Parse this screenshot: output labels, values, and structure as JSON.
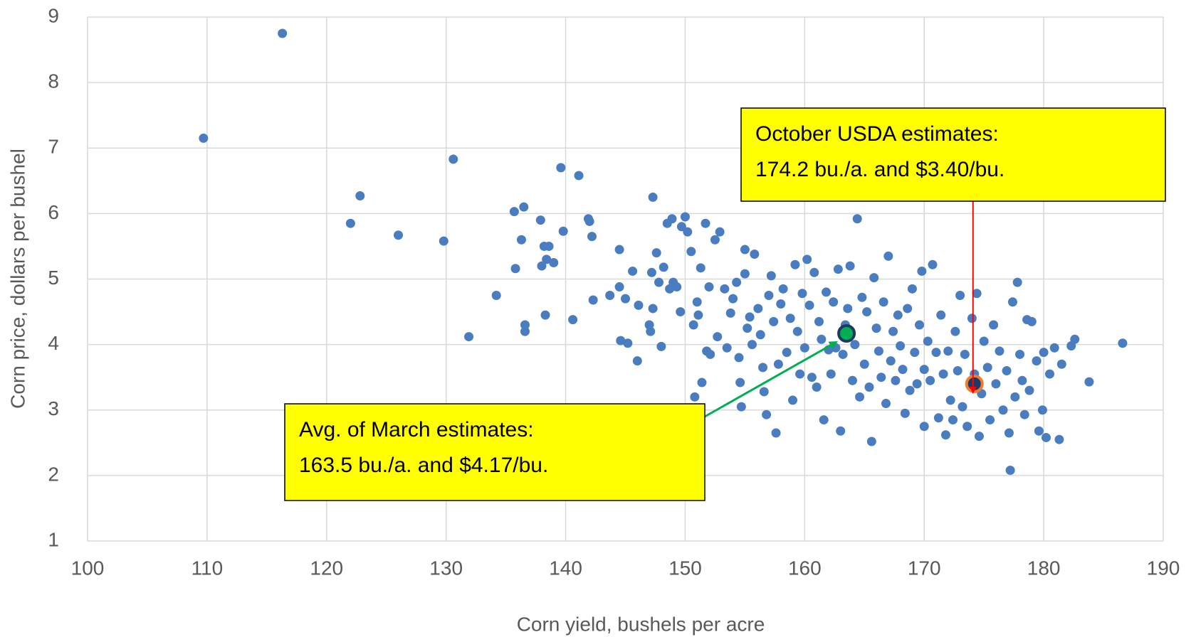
{
  "chart_data": {
    "type": "scatter",
    "xlabel": "Corn yield, bushels per acre",
    "ylabel": "Corn price, dollars per bushel",
    "xlim": [
      100,
      190
    ],
    "xticks": [
      100,
      110,
      120,
      130,
      140,
      150,
      160,
      170,
      180,
      190
    ],
    "ylim": [
      1,
      9
    ],
    "yticks": [
      1,
      2,
      3,
      4,
      5,
      6,
      7,
      8,
      9
    ],
    "grid": true,
    "series": [
      {
        "color": "#4a7dbf",
        "x": [
          109.7,
          116.3,
          122,
          122.8,
          126,
          129.8,
          130.6,
          131.9,
          134.2,
          135.7,
          135.8,
          136.3,
          136.5,
          136.6,
          136.6,
          137.9,
          138,
          138.2,
          138.3,
          138.4,
          138.6,
          139,
          139.6,
          139.8,
          140.6,
          141.1,
          141.9,
          142,
          142.2,
          142.3,
          143.7,
          144.5,
          144.5,
          144.6,
          145,
          145.2,
          145.6,
          146,
          146.1,
          147,
          147.1,
          147.2,
          147.3,
          147.3,
          147.6,
          147.8,
          148,
          148.2,
          148.5,
          148.7,
          148.9,
          149,
          149.3,
          149.6,
          149.7,
          150,
          150.2,
          150.5,
          150.7,
          150.8,
          151,
          151.1,
          151.3,
          151.4,
          151.7,
          151.8,
          152,
          152.1,
          152.5,
          152.7,
          152.9,
          153.3,
          153.5,
          153.8,
          154,
          154.3,
          154.5,
          154.6,
          154.7,
          155,
          155,
          155.2,
          155.4,
          155.6,
          155.8,
          156.1,
          156.3,
          156.5,
          156.6,
          156.8,
          157,
          157.2,
          157.4,
          157.6,
          157.8,
          158,
          158.2,
          158.5,
          158.8,
          159,
          159.2,
          159.4,
          159.6,
          159.8,
          160,
          160.2,
          160.4,
          160.6,
          160.8,
          161,
          161.2,
          161.4,
          161.6,
          161.8,
          162,
          162.2,
          162.4,
          162.6,
          162.8,
          163,
          163.2,
          163.4,
          163.6,
          163.8,
          164,
          164.2,
          164.4,
          164.6,
          164.8,
          165,
          165.2,
          165.4,
          165.6,
          165.8,
          166,
          166.2,
          166.4,
          166.6,
          166.8,
          167,
          167.2,
          167.4,
          167.6,
          167.8,
          168,
          168.2,
          168.4,
          168.6,
          168.8,
          169,
          169.2,
          169.4,
          169.6,
          169.8,
          170,
          170,
          170.3,
          170.5,
          170.7,
          171,
          171.2,
          171.4,
          171.6,
          171.8,
          172,
          172.2,
          172.4,
          172.6,
          172.8,
          173,
          173.2,
          173.4,
          173.6,
          174,
          174.2,
          174.4,
          174.6,
          174.8,
          175,
          175.3,
          175.5,
          175.8,
          176,
          176.3,
          176.6,
          176.9,
          177.1,
          177.2,
          177.4,
          177.6,
          177.8,
          178,
          178.2,
          178.4,
          178.6,
          178.8,
          179,
          179.4,
          179.6,
          179.9,
          180,
          180.2,
          180.5,
          180.9,
          181.3,
          181.5,
          182.3,
          182.6,
          183.8,
          186.6
        ],
        "values": [
          7.15,
          8.75,
          5.85,
          6.27,
          5.67,
          5.58,
          6.83,
          4.12,
          4.75,
          6.03,
          5.16,
          5.6,
          6.1,
          4.3,
          4.2,
          5.9,
          5.2,
          5.5,
          4.45,
          5.3,
          5.5,
          5.25,
          6.7,
          5.73,
          4.38,
          6.58,
          5.92,
          5.88,
          5.65,
          4.68,
          4.75,
          5.45,
          4.88,
          4.06,
          4.7,
          4.02,
          5.12,
          3.75,
          4.6,
          4.3,
          4.2,
          5.1,
          6.25,
          4.55,
          5.4,
          4.95,
          3.97,
          5.18,
          5.85,
          4.85,
          5.92,
          4.95,
          4.88,
          4.5,
          5.8,
          5.95,
          5.72,
          5.42,
          4.3,
          3.2,
          4.65,
          4.45,
          5.17,
          3.42,
          5.85,
          3.9,
          4.88,
          3.85,
          5.6,
          4.12,
          5.72,
          4.85,
          3.95,
          4.48,
          4.7,
          4.95,
          3.8,
          3.42,
          3.05,
          5.45,
          5.08,
          4.25,
          4.42,
          4.0,
          5.38,
          4.55,
          4.15,
          3.65,
          3.28,
          2.93,
          4.75,
          5.05,
          4.35,
          2.65,
          3.7,
          4.62,
          4.85,
          3.88,
          4.4,
          3.15,
          5.22,
          4.2,
          3.55,
          4.78,
          3.95,
          5.3,
          4.6,
          3.5,
          5.1,
          3.35,
          4.35,
          4.08,
          2.85,
          4.8,
          3.92,
          3.55,
          4.65,
          3.95,
          5.15,
          2.68,
          3.85,
          4.3,
          4.55,
          5.2,
          3.45,
          4.0,
          5.92,
          3.2,
          4.72,
          3.7,
          4.5,
          3.35,
          2.52,
          5.02,
          4.25,
          3.9,
          3.5,
          4.65,
          3.1,
          5.35,
          3.75,
          4.2,
          3.45,
          4.45,
          3.98,
          3.62,
          2.95,
          4.55,
          3.3,
          4.85,
          3.88,
          3.4,
          4.3,
          5.12,
          3.62,
          2.75,
          4.05,
          3.45,
          5.22,
          3.88,
          2.88,
          4.45,
          3.55,
          2.62,
          3.9,
          3.15,
          2.85,
          4.2,
          3.6,
          4.75,
          3.05,
          3.85,
          2.75,
          4.4,
          3.55,
          4.78,
          2.6,
          3.25,
          4.05,
          3.65,
          2.85,
          4.3,
          3.4,
          3.9,
          3.0,
          3.6,
          2.65,
          2.08,
          4.65,
          3.2,
          4.95,
          3.85,
          3.45,
          2.93,
          4.38,
          3.3,
          4.35,
          3.75,
          2.68,
          3.0,
          3.88,
          2.58,
          3.55,
          3.95,
          2.55,
          3.7,
          3.98,
          4.08,
          3.43,
          4.02
        ]
      },
      {
        "color": "#00b050",
        "edgecolor": "#1f3864",
        "x": [
          163.5
        ],
        "values": [
          4.17
        ]
      },
      {
        "color": "#1f3864",
        "edgecolor": "#ed7d31",
        "x": [
          174.2
        ],
        "values": [
          3.4
        ]
      }
    ],
    "annotations": [
      {
        "lines": [
          "October USDA estimates:",
          "174.2 bu./a. and $3.40/bu."
        ],
        "arrow_color": "#ff0000"
      },
      {
        "lines": [
          "Avg. of March estimates:",
          "163.5 bu./a. and $4.17/bu."
        ],
        "arrow_color": "#00b050"
      }
    ]
  }
}
